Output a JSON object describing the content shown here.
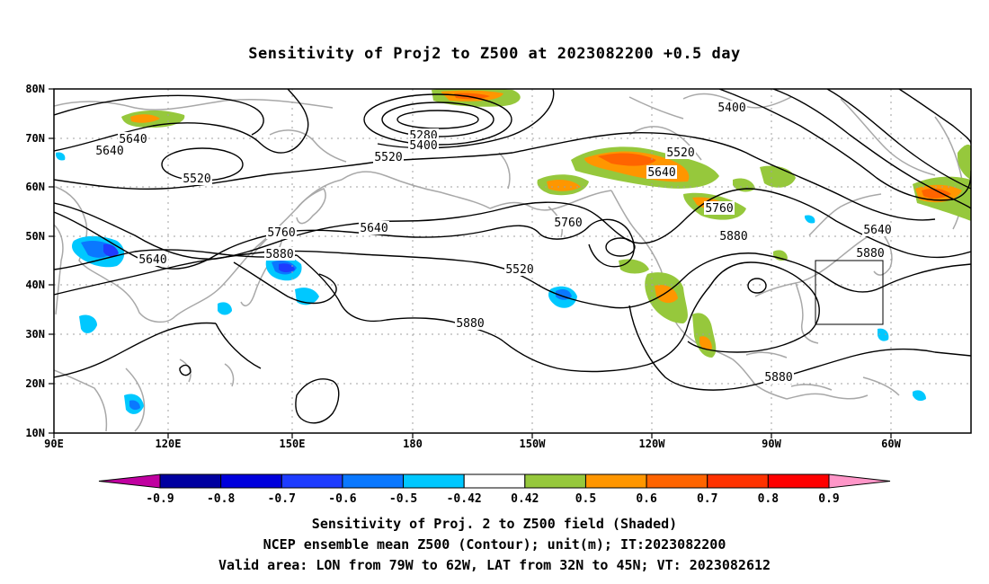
{
  "title": "Sensitivity of Proj2 to Z500 at 2023082200 +0.5 day",
  "map": {
    "lon_ticks": [
      "90E",
      "120E",
      "150E",
      "180",
      "150W",
      "120W",
      "90W",
      "60W"
    ],
    "lat_ticks": [
      "10N",
      "20N",
      "30N",
      "40N",
      "50N",
      "60N",
      "70N",
      "80N"
    ],
    "grid": "dotted",
    "contour_labels": [
      {
        "text": "5640"
      },
      {
        "text": "5640"
      },
      {
        "text": "5520"
      },
      {
        "text": "5280"
      },
      {
        "text": "5400"
      },
      {
        "text": "5520"
      },
      {
        "text": "5400"
      },
      {
        "text": "5520"
      },
      {
        "text": "5640"
      },
      {
        "text": "5760"
      },
      {
        "text": "5640"
      },
      {
        "text": "5760"
      },
      {
        "text": "5880"
      },
      {
        "text": "5640"
      },
      {
        "text": "5760"
      },
      {
        "text": "5880"
      },
      {
        "text": "5520"
      },
      {
        "text": "5640"
      },
      {
        "text": "5880"
      },
      {
        "text": "5880"
      },
      {
        "text": "5880"
      }
    ],
    "valid_box": {
      "lon_min": -79,
      "lon_max": -62,
      "lat_min": 32,
      "lat_max": 45
    }
  },
  "colorbar": {
    "levels": [
      "-0.9",
      "-0.8",
      "-0.7",
      "-0.6",
      "-0.5",
      "-0.42",
      "0.42",
      "0.5",
      "0.6",
      "0.7",
      "0.8",
      "0.9"
    ],
    "colors": [
      "#c000a0",
      "#0000a0",
      "#0000dc",
      "#1e3cff",
      "#0a78ff",
      "#00c8ff",
      "#ffffff",
      "#96c83c",
      "#ff9600",
      "#ff6400",
      "#ff3200",
      "#ff0000",
      "#ff96c8"
    ]
  },
  "captions": {
    "line1": "Sensitivity of Proj. 2 to Z500 field (Shaded)",
    "line2": "NCEP ensemble mean Z500 (Contour); unit(m); IT:2023082200",
    "line3": "Valid area: LON from 79W to 62W, LAT from 32N to 45N; VT: 2023082612"
  }
}
